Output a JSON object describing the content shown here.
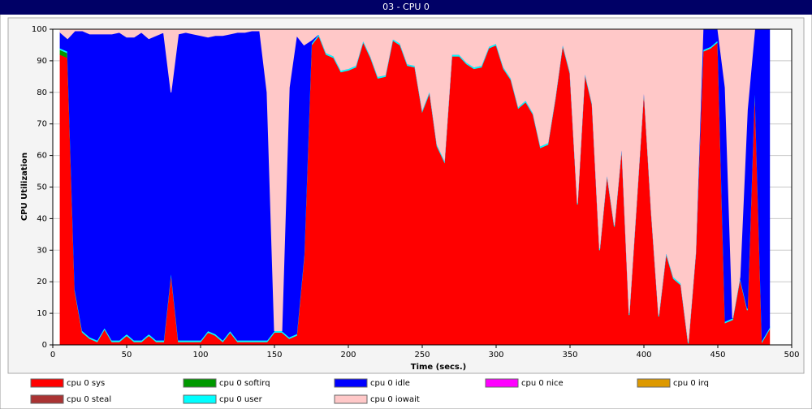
{
  "chart_data": {
    "type": "stacked_area",
    "title": "03 - CPU 0",
    "x_label": "Time (secs.)",
    "y_label": "CPU Utilization",
    "xlim": [
      0,
      500
    ],
    "ylim": [
      0,
      100
    ],
    "xticks": [
      0,
      50,
      100,
      150,
      200,
      250,
      300,
      350,
      400,
      450,
      500
    ],
    "yticks": [
      0,
      10,
      20,
      30,
      40,
      50,
      60,
      70,
      80,
      90,
      100
    ],
    "grid": true,
    "x": [
      5,
      10,
      15,
      20,
      25,
      30,
      35,
      40,
      45,
      50,
      55,
      60,
      65,
      70,
      75,
      80,
      85,
      90,
      95,
      100,
      105,
      110,
      115,
      120,
      125,
      130,
      135,
      140,
      145,
      150,
      155,
      160,
      165,
      170,
      175,
      180,
      185,
      190,
      195,
      200,
      205,
      210,
      215,
      220,
      225,
      230,
      235,
      240,
      245,
      250,
      255,
      260,
      265,
      270,
      275,
      280,
      285,
      290,
      295,
      300,
      305,
      310,
      315,
      320,
      325,
      330,
      335,
      340,
      345,
      350,
      355,
      360,
      365,
      370,
      375,
      380,
      385,
      390,
      395,
      400,
      405,
      410,
      415,
      420,
      425,
      430,
      435,
      440,
      445,
      450,
      455,
      460,
      465,
      470,
      475,
      480,
      485
    ],
    "series": [
      {
        "name": "cpu 0 sys",
        "color": "#ff0000",
        "values": [
          92,
          91,
          17,
          4,
          2,
          1,
          5,
          1,
          1,
          3,
          1,
          1,
          3,
          1,
          1,
          23,
          1,
          1,
          1,
          1,
          4,
          3,
          1,
          4,
          1,
          1,
          1,
          1,
          1,
          4,
          4,
          2,
          3,
          28,
          95,
          98,
          92,
          91,
          86.5,
          87,
          88,
          96,
          91,
          84.5,
          85,
          96.5,
          95,
          88.5,
          88,
          74,
          80,
          63,
          58,
          91.5,
          91.5,
          89,
          87.5,
          88,
          94,
          95,
          87.5,
          84,
          75,
          77,
          73,
          62.5,
          63.5,
          78,
          95,
          86,
          44.5,
          86,
          76,
          30,
          54,
          37.5,
          63,
          9.5,
          45,
          81,
          42,
          9,
          29,
          21,
          19,
          0.5,
          29,
          93,
          94,
          96,
          7,
          8,
          21,
          11,
          83,
          1,
          5
        ]
      },
      {
        "name": "cpu 0 softirq",
        "color": "#009900",
        "values": [
          1.5,
          1.5,
          0,
          0,
          0,
          0,
          0,
          0,
          0,
          0,
          0,
          0,
          0,
          0,
          0,
          0,
          0,
          0,
          0,
          0,
          0,
          0,
          0,
          0,
          0,
          0,
          0,
          0,
          0,
          0,
          0,
          0,
          0,
          0,
          0,
          0,
          0,
          0,
          0,
          0,
          0,
          0,
          0,
          0,
          0,
          0,
          0,
          0,
          0,
          0,
          0,
          0,
          0,
          0,
          0,
          0,
          0,
          0,
          0,
          0,
          0,
          0,
          0,
          0,
          0,
          0,
          0,
          0,
          0,
          0,
          0,
          0,
          0,
          0,
          0,
          0,
          0,
          0,
          0,
          0,
          0,
          0,
          0,
          0,
          0,
          0,
          0,
          0,
          0,
          0,
          0,
          0,
          0,
          0,
          0,
          0,
          0
        ]
      },
      {
        "name": "cpu 0 idle",
        "color": "#0000ff",
        "values": [
          5,
          4,
          82,
          95,
          96,
          97,
          93,
          97,
          97.5,
          94,
          96,
          97.5,
          93.5,
          96.5,
          97.5,
          56.5,
          97,
          97.5,
          97,
          96.5,
          93,
          94.5,
          96.5,
          94,
          97.5,
          97.5,
          98,
          98,
          78.5,
          0,
          0,
          79,
          94.5,
          66.5,
          1,
          0,
          0,
          0,
          0,
          0,
          0,
          0,
          0,
          0,
          0,
          0,
          0,
          0,
          0,
          0,
          0,
          0,
          0,
          0,
          0,
          0,
          0,
          0,
          0,
          0,
          0,
          0,
          0,
          0,
          0,
          0,
          0,
          0,
          0,
          0,
          0,
          0,
          0,
          0,
          0,
          0,
          0,
          0,
          0,
          0,
          0,
          0,
          0,
          0,
          0,
          0,
          0,
          6.5,
          5.5,
          3.5,
          74,
          0,
          0,
          63,
          16.5,
          98.5,
          94.5
        ]
      },
      {
        "name": "cpu 0 nice",
        "color": "#ff00ff",
        "values": [
          0,
          0,
          0,
          0,
          0,
          0,
          0,
          0,
          0,
          0,
          0,
          0,
          0,
          0,
          0,
          0,
          0,
          0,
          0,
          0,
          0,
          0,
          0,
          0,
          0,
          0,
          0,
          0,
          0,
          0,
          0,
          0,
          0,
          0,
          0,
          0,
          0,
          0,
          0,
          0,
          0,
          0,
          0,
          0,
          0,
          0,
          0,
          0,
          0,
          0,
          0,
          0,
          0,
          0,
          0,
          0,
          0,
          0,
          0,
          0,
          0,
          0,
          0,
          0,
          0,
          0,
          0,
          0,
          0,
          0,
          0,
          0,
          0,
          0,
          0,
          0,
          0,
          0,
          0,
          0,
          0,
          0,
          0,
          0,
          0,
          0,
          0,
          0,
          0,
          0,
          0,
          0,
          0,
          0,
          0,
          0,
          0
        ]
      },
      {
        "name": "cpu 0 irq",
        "color": "#dd9900",
        "values": [
          0,
          0,
          0,
          0,
          0,
          0,
          0,
          0,
          0,
          0,
          0,
          0,
          0,
          0,
          0,
          0,
          0,
          0,
          0,
          0,
          0,
          0,
          0,
          0,
          0,
          0,
          0,
          0,
          0,
          0,
          0,
          0,
          0,
          0,
          0,
          0,
          0,
          0,
          0,
          0,
          0,
          0,
          0,
          0,
          0,
          0,
          0,
          0,
          0,
          0,
          0,
          0,
          0,
          0,
          0,
          0,
          0,
          0,
          0,
          0,
          0,
          0,
          0,
          0,
          0,
          0,
          0,
          0,
          0,
          0,
          0,
          0,
          0,
          0,
          0,
          0,
          0,
          0,
          0,
          0,
          0,
          0,
          0,
          0,
          0,
          0,
          0,
          0,
          0,
          0,
          0,
          0,
          0,
          0,
          0,
          0,
          0
        ]
      },
      {
        "name": "cpu 0 steal",
        "color": "#aa3333",
        "values": [
          0,
          0,
          0,
          0,
          0,
          0,
          0,
          0,
          0,
          0,
          0,
          0,
          0,
          0,
          0,
          0,
          0,
          0,
          0,
          0,
          0,
          0,
          0,
          0,
          0,
          0,
          0,
          0,
          0,
          0,
          0,
          0,
          0,
          0,
          0,
          0,
          0,
          0,
          0,
          0,
          0,
          0,
          0,
          0,
          0,
          0,
          0,
          0,
          0,
          0,
          0,
          0,
          0,
          0,
          0,
          0,
          0,
          0,
          0,
          0,
          0,
          0,
          0,
          0,
          0,
          0,
          0,
          0,
          0,
          0,
          0,
          0,
          0,
          0,
          0,
          0,
          0,
          0,
          0,
          0,
          0,
          0,
          0,
          0,
          0,
          0,
          0,
          0,
          0,
          0,
          0,
          0,
          0,
          0,
          0,
          0,
          0
        ]
      },
      {
        "name": "cpu 0 user",
        "color": "#00ffff",
        "values": [
          0.5,
          0.5,
          0.5,
          0.5,
          0.5,
          0.5,
          0.5,
          0.5,
          0.5,
          0.5,
          0.5,
          0.5,
          0.5,
          0.5,
          0.5,
          0.5,
          0.5,
          0.5,
          0.5,
          0.5,
          0.5,
          0.5,
          0.5,
          0.5,
          0.5,
          0.5,
          0.5,
          0.5,
          0.5,
          0.5,
          0.5,
          0.5,
          0.5,
          0.5,
          0.5,
          0.5,
          0.5,
          0.5,
          0.5,
          0.5,
          0.5,
          0.5,
          0.5,
          0.5,
          0.5,
          0.5,
          0.5,
          0.5,
          0.5,
          0.5,
          0.5,
          0.5,
          0.5,
          0.5,
          0.5,
          0.5,
          0.5,
          0.5,
          0.5,
          0.5,
          0.5,
          0.5,
          0.5,
          0.5,
          0.5,
          0.5,
          0.5,
          0.5,
          0.5,
          0.5,
          0.5,
          0.5,
          0.5,
          0.5,
          0.5,
          0.5,
          0.5,
          0.5,
          0.5,
          0.5,
          0.5,
          0.5,
          0.5,
          0.5,
          0.5,
          0.5,
          0.5,
          0.5,
          0.5,
          0.5,
          0.5,
          0.5,
          0.5,
          0.5,
          0.5,
          0.5,
          0.5
        ]
      },
      {
        "name": "cpu 0 iowait",
        "color": "#ffc8c8",
        "values": [
          1,
          3,
          0.5,
          0.5,
          1.5,
          1.5,
          1.5,
          1.5,
          1,
          2.5,
          2.5,
          1,
          3,
          2,
          1,
          20,
          1.5,
          1,
          1.5,
          2,
          2.5,
          2,
          2,
          1.5,
          1,
          1,
          0.5,
          0.5,
          20,
          95.5,
          95.5,
          18.5,
          2,
          5,
          3.5,
          1.5,
          7.5,
          8.5,
          13,
          12.5,
          11.5,
          3.5,
          8.5,
          15,
          14.5,
          3,
          4.5,
          11,
          11.5,
          25.5,
          19.5,
          36.5,
          41.5,
          8,
          8,
          10.5,
          12,
          11.5,
          5.5,
          4.5,
          12,
          15.5,
          24.5,
          22.5,
          26.5,
          37,
          36,
          21.5,
          4.5,
          13.5,
          55,
          13.5,
          23.5,
          69.5,
          45.5,
          62,
          36.5,
          90,
          54.5,
          18.5,
          57.5,
          90.5,
          70.5,
          78.5,
          80.5,
          99,
          70.5,
          0,
          0,
          0,
          18.5,
          91.5,
          78.5,
          25.5,
          0,
          0,
          0
        ]
      }
    ]
  }
}
